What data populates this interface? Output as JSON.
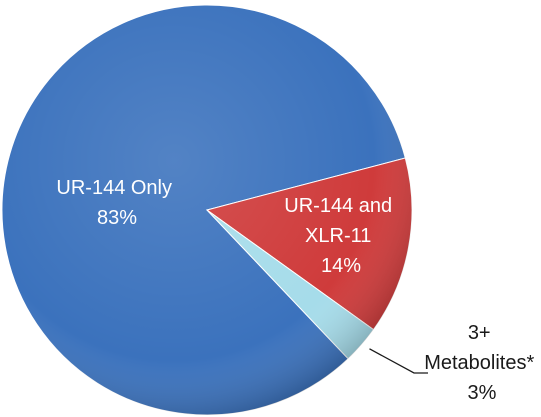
{
  "chart_data": {
    "type": "pie",
    "style": "3d-shaded",
    "slices": [
      {
        "name": "UR-144 Only",
        "value": 83,
        "label": "83%",
        "color": "#3b72bd"
      },
      {
        "name": "UR-144 and XLR-11",
        "value": 14,
        "label": "14%",
        "color": "#cf3b3b"
      },
      {
        "name": "3+ Metabolites*",
        "value": 3,
        "label": "3%",
        "color": "#a6dcea"
      }
    ],
    "label_text": {
      "s0_line1": "UR-144 Only",
      "s0_line2": "83%",
      "s1_line1": "UR-144 and",
      "s1_line2": "XLR-11",
      "s1_line3": "14%",
      "s2_line1": "3+",
      "s2_line2": "Metabolites*",
      "s2_line3": "3%"
    },
    "title": "",
    "legend": "none"
  }
}
